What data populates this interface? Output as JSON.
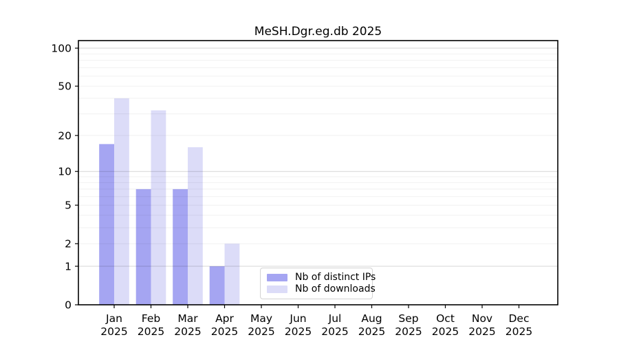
{
  "title": "MeSH.Dgr.eg.db 2025",
  "legend": {
    "items": [
      {
        "label": "Nb of distinct IPs",
        "color": "#a5a5f2"
      },
      {
        "label": "Nb of downloads",
        "color": "#dcdcf8"
      }
    ]
  },
  "chart_data": {
    "type": "bar",
    "title": "MeSH.Dgr.eg.db 2025",
    "categories": [
      "Jan 2025",
      "Feb 2025",
      "Mar 2025",
      "Apr 2025",
      "May 2025",
      "Jun 2025",
      "Jul 2025",
      "Aug 2025",
      "Sep 2025",
      "Oct 2025",
      "Nov 2025",
      "Dec 2025"
    ],
    "series": [
      {
        "name": "Nb of distinct IPs",
        "color": "#a5a5f2",
        "values": [
          17,
          7,
          7,
          1,
          0,
          0,
          0,
          0,
          0,
          0,
          0,
          0
        ]
      },
      {
        "name": "Nb of downloads",
        "color": "#dcdcf8",
        "values": [
          40,
          32,
          16,
          2,
          0,
          0,
          0,
          0,
          0,
          0,
          0,
          0
        ]
      }
    ],
    "yscale": "log1p",
    "yticks": [
      0,
      1,
      2,
      5,
      10,
      20,
      50,
      100
    ],
    "minor_gridlines": [
      2,
      3,
      4,
      5,
      6,
      7,
      8,
      9,
      20,
      30,
      40,
      50,
      60,
      70,
      80,
      90
    ],
    "major_gridlines": [
      1,
      10,
      100
    ],
    "ylim": [
      0,
      115
    ],
    "xlabel": "",
    "ylabel": "",
    "grid": true,
    "legend_position": "lower center",
    "colors": {
      "grid_minor": "rgba(0,0,0,0.055)",
      "grid_major": "rgba(0,0,0,0.16)",
      "axis": "#000000",
      "background": "#ffffff"
    }
  }
}
